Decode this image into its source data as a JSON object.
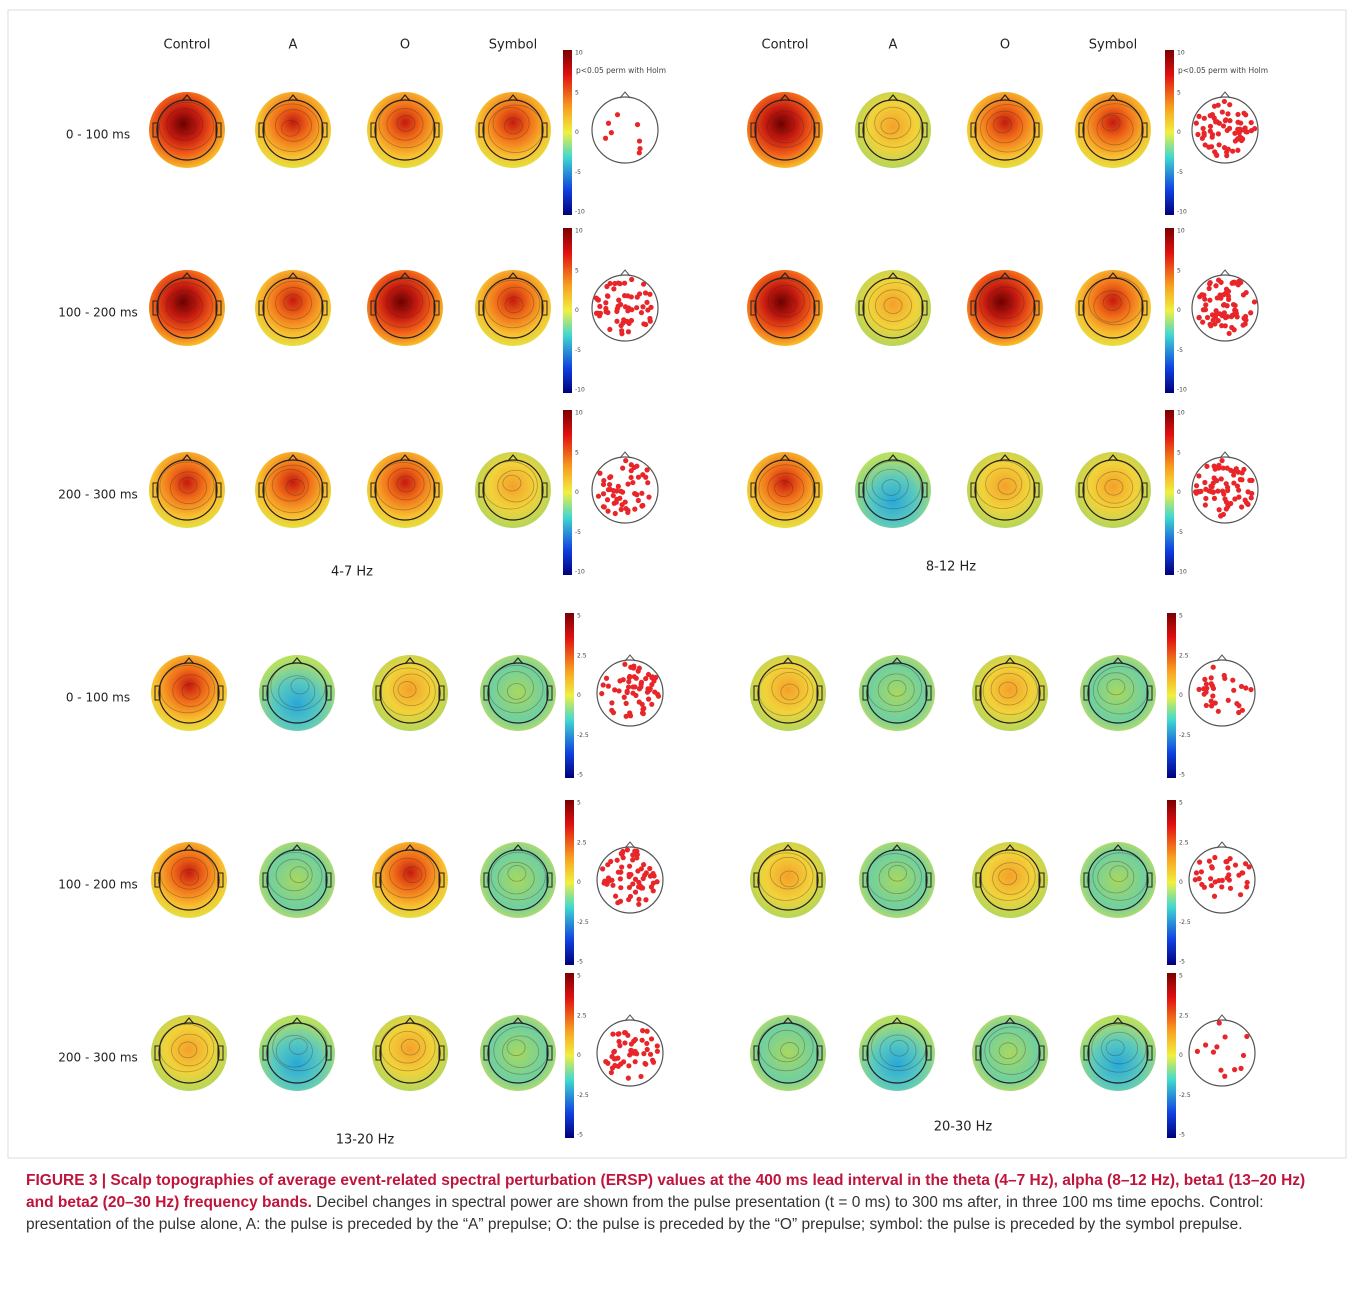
{
  "panels": [
    {
      "band": "4-7 Hz",
      "columns": [
        "Control",
        "A",
        "O",
        "Symbol"
      ],
      "rows": [
        "0 - 100 ms",
        "100 - 200 ms",
        "200 - 300 ms"
      ],
      "significance_label": "p<0.05 perm with Holm",
      "colorbar_ticks": [
        "10",
        "5",
        "0",
        "-5",
        "-10"
      ]
    },
    {
      "band": "8-12 Hz",
      "columns": [
        "Control",
        "A",
        "O",
        "Symbol"
      ],
      "significance_label": "p<0.05 perm with Holm",
      "colorbar_ticks": [
        "10",
        "5",
        "0",
        "-5",
        "-10"
      ]
    },
    {
      "band": "13-20 Hz",
      "rows": [
        "0 - 100 ms",
        "100 - 200 ms",
        "200 - 300 ms"
      ],
      "colorbar_ticks": [
        "5",
        "2.5",
        "0",
        "-2.5",
        "-5"
      ]
    },
    {
      "band": "20-30 Hz",
      "colorbar_ticks": [
        "5",
        "2.5",
        "0",
        "-2.5",
        "-5"
      ]
    }
  ],
  "caption": {
    "label": "FIGURE 3 | Scalp topographies of average event-related spectral perturbation (ERSP) values at the 400 ms lead interval in the theta (4–7 Hz), alpha (8–12 Hz), beta1 (13–20 Hz) and beta2 (20–30 Hz) frequency bands.",
    "text": "Decibel changes in spectral power are shown from the pulse presentation (t = 0 ms) to 300 ms after, in three 100 ms time epochs. Control: presentation of the pulse alone, A: the pulse is preceded by the “A” prepulse; O: the pulse is preceded by the “O” prepulse; symbol: the pulse is preceded by the symbol prepulse."
  }
}
